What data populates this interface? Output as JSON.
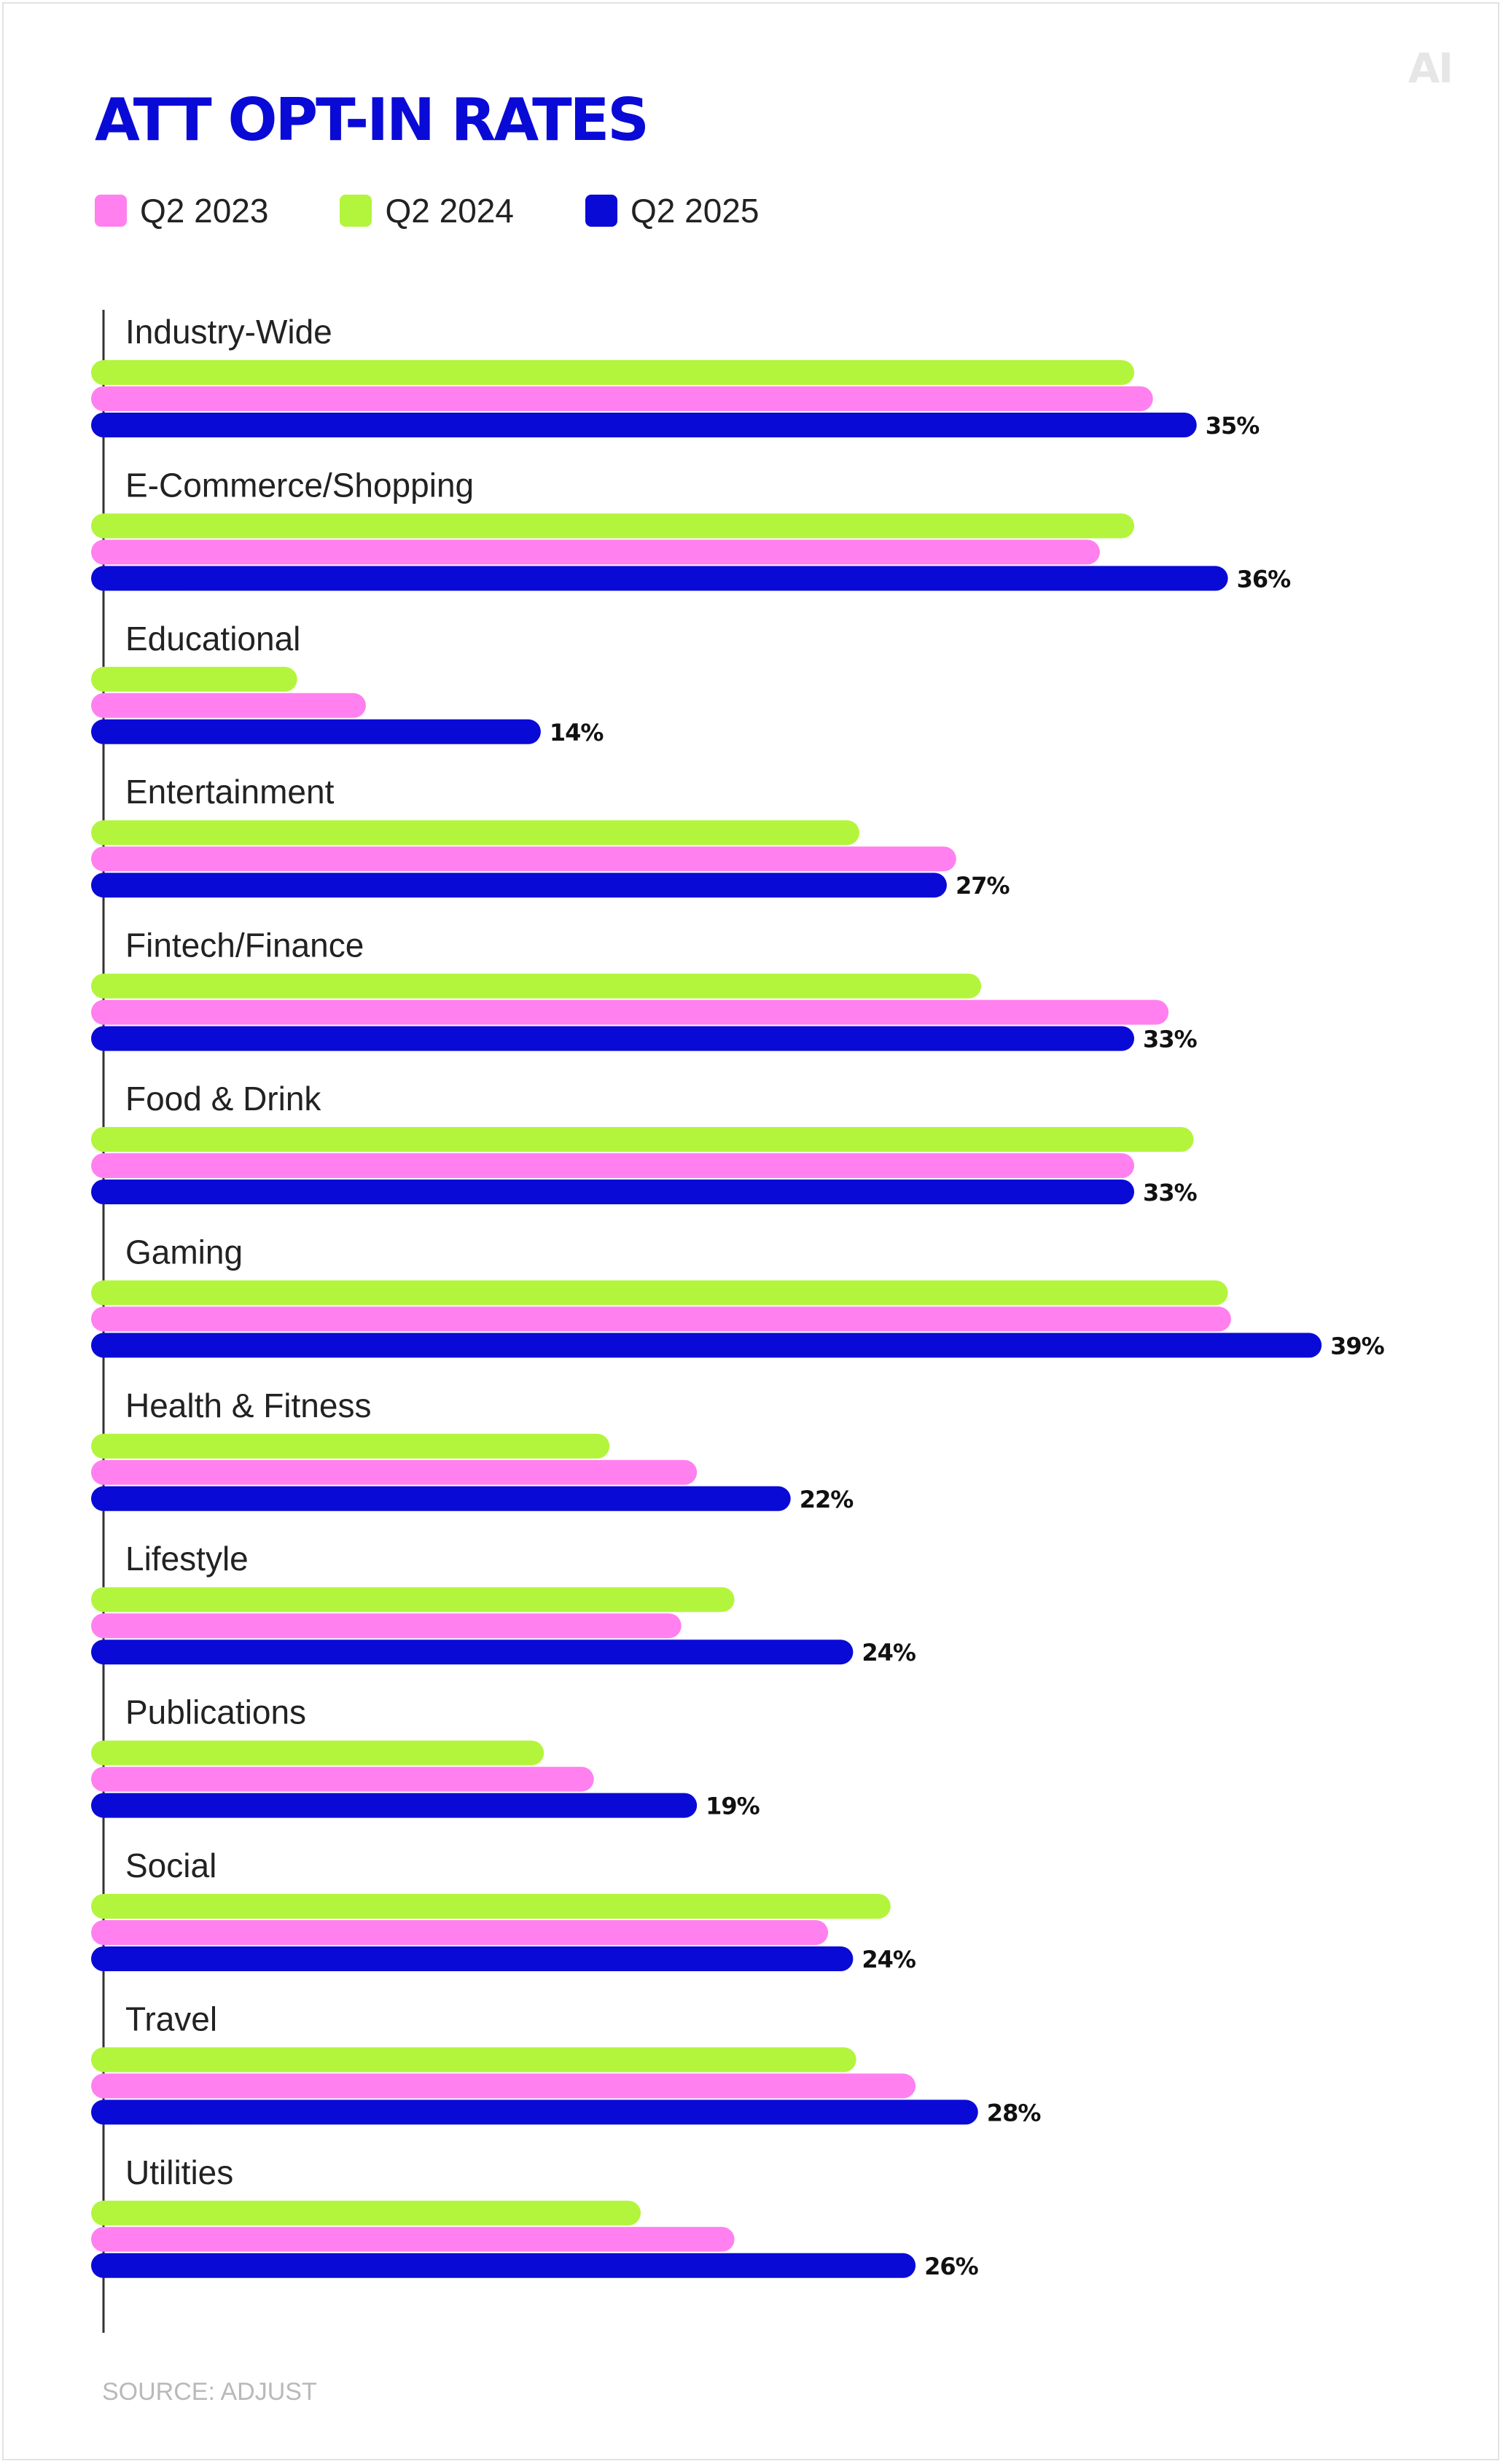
{
  "logo": "AI",
  "source": "SOURCE: ADJUST",
  "colors": {
    "q2_2023": "#ff80ee",
    "q2_2024": "#b3f53c",
    "q2_2025": "#0a0ad6",
    "title": "#0a0ad6"
  },
  "chart_data": {
    "type": "bar",
    "orientation": "horizontal",
    "title": "ATT OPT-IN RATES",
    "legend": [
      "Q2 2023",
      "Q2 2024",
      "Q2 2025"
    ],
    "legend_position": "top-left",
    "grid": false,
    "xlim": [
      0,
      40
    ],
    "categories": [
      "Industry-Wide",
      "E-Commerce/Shopping",
      "Educational",
      "Entertainment",
      "Fintech/Finance",
      "Food & Drink",
      "Gaming",
      "Health & Fitness",
      "Lifestyle",
      "Publications",
      "Social",
      "Travel",
      "Utilities"
    ],
    "series": [
      {
        "name": "Q2 2024",
        "color": "#b3f53c",
        "values": [
          33.0,
          33.0,
          6.2,
          24.2,
          28.1,
          34.9,
          36.0,
          16.2,
          20.2,
          14.1,
          25.2,
          24.1,
          17.2
        ]
      },
      {
        "name": "Q2 2023",
        "color": "#ff80ee",
        "values": [
          33.6,
          31.9,
          8.4,
          27.3,
          34.1,
          33.0,
          36.1,
          19.0,
          18.5,
          15.7,
          23.2,
          26.0,
          20.2
        ]
      },
      {
        "name": "Q2 2025",
        "color": "#0a0ad6",
        "values": [
          35,
          36,
          14,
          27,
          33,
          33,
          39,
          22,
          24,
          19,
          24,
          28,
          26
        ]
      }
    ],
    "value_labels": [
      "35%",
      "36%",
      "14%",
      "27%",
      "33%",
      "33%",
      "39%",
      "22%",
      "24%",
      "19%",
      "24%",
      "28%",
      "26%"
    ]
  }
}
